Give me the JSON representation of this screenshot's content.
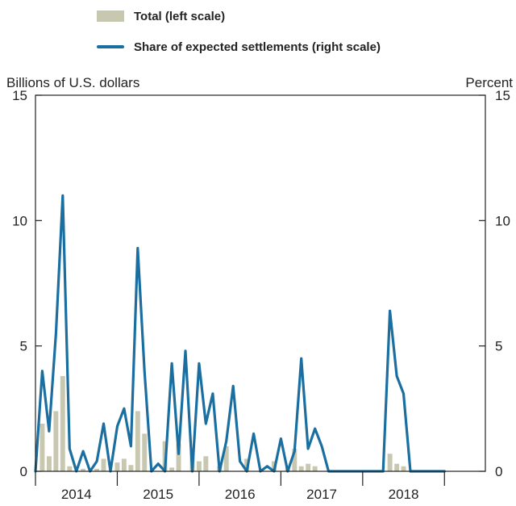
{
  "chart_data": {
    "type": "bar+line",
    "legend": [
      {
        "label": "Total (left scale)",
        "kind": "bar",
        "color": "#c8c8b0"
      },
      {
        "label": "Share of expected settlements (right scale)",
        "kind": "line",
        "color": "#1a6fa0"
      }
    ],
    "left_axis": {
      "label": "Billions of U.S. dollars",
      "range": [
        0,
        15
      ],
      "ticks": [
        "0",
        "5",
        "10",
        "15"
      ]
    },
    "right_axis": {
      "label": "Percent",
      "range": [
        0,
        15
      ],
      "ticks": [
        "0",
        "5",
        "10",
        "15"
      ]
    },
    "x_labels": [
      "2014",
      "2015",
      "2016",
      "2017",
      "2018"
    ],
    "x_year_start": 2013.5,
    "x_year_end": 2019.0,
    "series": [
      {
        "name": "Total (left scale)",
        "type": "bar",
        "axis": "left",
        "points": [
          [
            2013.583,
            1.9
          ],
          [
            2013.667,
            0.6
          ],
          [
            2013.75,
            2.4
          ],
          [
            2013.833,
            3.8
          ],
          [
            2013.917,
            0.2
          ],
          [
            2014.083,
            0.1
          ],
          [
            2014.25,
            0.1
          ],
          [
            2014.333,
            0.5
          ],
          [
            2014.5,
            0.35
          ],
          [
            2014.583,
            0.5
          ],
          [
            2014.667,
            0.25
          ],
          [
            2014.75,
            2.4
          ],
          [
            2014.833,
            1.5
          ],
          [
            2015.083,
            1.2
          ],
          [
            2015.167,
            0.15
          ],
          [
            2015.25,
            1.1
          ],
          [
            2015.417,
            0.8
          ],
          [
            2015.5,
            0.4
          ],
          [
            2015.583,
            0.6
          ],
          [
            2015.75,
            0.2
          ],
          [
            2015.833,
            1.0
          ],
          [
            2016.083,
            0.5
          ],
          [
            2016.417,
            0.4
          ],
          [
            2016.583,
            0.15
          ],
          [
            2016.667,
            0.9
          ],
          [
            2016.75,
            0.2
          ],
          [
            2016.833,
            0.3
          ],
          [
            2016.917,
            0.2
          ],
          [
            2017.833,
            0.7
          ],
          [
            2017.917,
            0.3
          ],
          [
            2018.0,
            0.2
          ]
        ]
      },
      {
        "name": "Share of expected settlements (right scale)",
        "type": "line",
        "axis": "right",
        "points": [
          [
            2013.5,
            0
          ],
          [
            2013.583,
            4.0
          ],
          [
            2013.667,
            1.6
          ],
          [
            2013.75,
            5.5
          ],
          [
            2013.833,
            11.0
          ],
          [
            2013.917,
            0.9
          ],
          [
            2014.0,
            0
          ],
          [
            2014.083,
            0.8
          ],
          [
            2014.167,
            0
          ],
          [
            2014.25,
            0.4
          ],
          [
            2014.333,
            1.9
          ],
          [
            2014.417,
            0
          ],
          [
            2014.5,
            1.8
          ],
          [
            2014.583,
            2.5
          ],
          [
            2014.667,
            1.0
          ],
          [
            2014.75,
            8.9
          ],
          [
            2014.833,
            4.0
          ],
          [
            2014.917,
            0
          ],
          [
            2015.0,
            0.3
          ],
          [
            2015.083,
            0
          ],
          [
            2015.167,
            4.3
          ],
          [
            2015.25,
            0.7
          ],
          [
            2015.333,
            4.8
          ],
          [
            2015.417,
            0
          ],
          [
            2015.5,
            4.3
          ],
          [
            2015.583,
            1.9
          ],
          [
            2015.667,
            3.1
          ],
          [
            2015.75,
            0
          ],
          [
            2015.833,
            1.2
          ],
          [
            2015.917,
            3.4
          ],
          [
            2016.0,
            0.4
          ],
          [
            2016.083,
            0
          ],
          [
            2016.167,
            1.5
          ],
          [
            2016.25,
            0
          ],
          [
            2016.333,
            0.2
          ],
          [
            2016.417,
            0
          ],
          [
            2016.5,
            1.3
          ],
          [
            2016.583,
            0
          ],
          [
            2016.667,
            0.8
          ],
          [
            2016.75,
            4.5
          ],
          [
            2016.833,
            0.9
          ],
          [
            2016.917,
            1.7
          ],
          [
            2017.0,
            1.0
          ],
          [
            2017.083,
            0
          ],
          [
            2017.167,
            0
          ],
          [
            2017.25,
            0
          ],
          [
            2017.333,
            0
          ],
          [
            2017.417,
            0
          ],
          [
            2017.5,
            0
          ],
          [
            2017.583,
            0
          ],
          [
            2017.667,
            0
          ],
          [
            2017.75,
            0
          ],
          [
            2017.833,
            6.4
          ],
          [
            2017.917,
            3.8
          ],
          [
            2018.0,
            3.1
          ],
          [
            2018.083,
            0
          ],
          [
            2018.167,
            0
          ],
          [
            2018.25,
            0
          ],
          [
            2018.333,
            0
          ],
          [
            2018.417,
            0
          ],
          [
            2018.5,
            0
          ]
        ]
      }
    ],
    "grid": false
  }
}
